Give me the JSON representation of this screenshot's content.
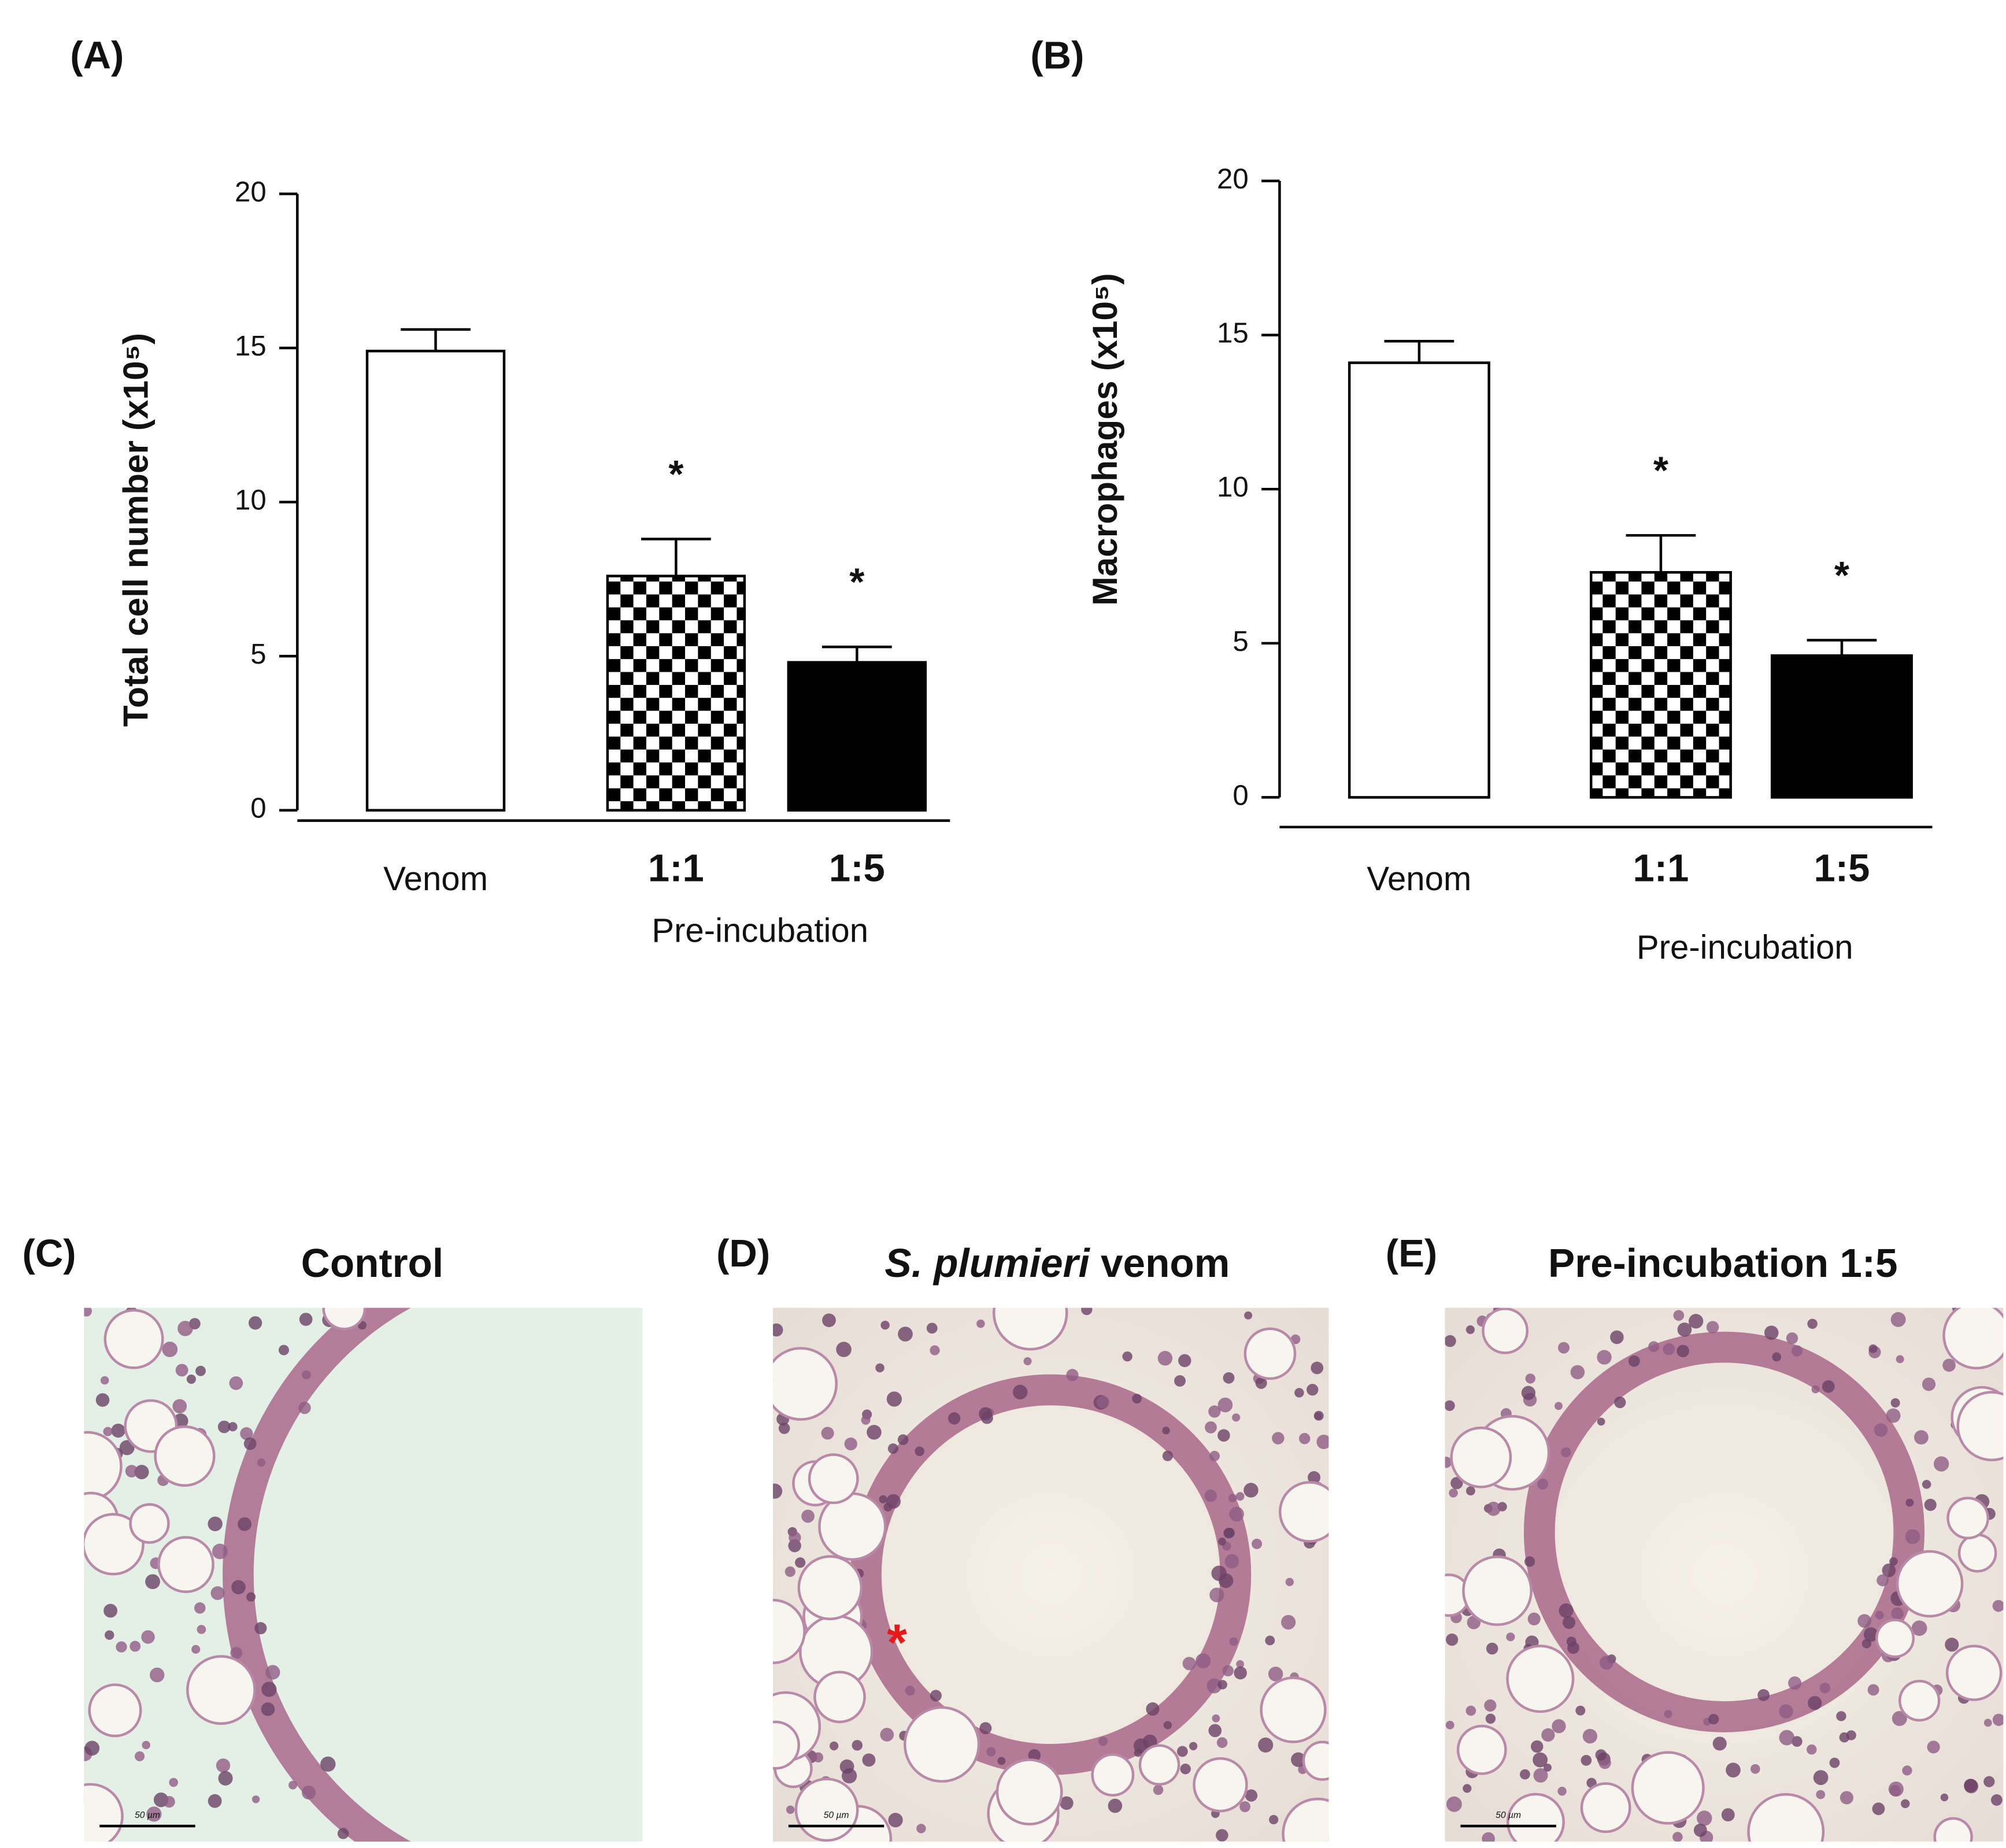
{
  "chart_data": [
    {
      "type": "bar",
      "panel": "(A)",
      "ylabel": "Total cell number (x10⁵)",
      "xlabel": "Pre-incubation",
      "categories": [
        "Venom",
        "1:1",
        "1:5"
      ],
      "values": [
        14.9,
        7.6,
        4.8
      ],
      "errors": [
        0.7,
        1.2,
        0.5
      ],
      "significance": [
        null,
        "*",
        "*"
      ],
      "fills": [
        "white",
        "checkerboard",
        "black"
      ],
      "ylim": [
        0,
        20
      ],
      "yticks": [
        0,
        5,
        10,
        15,
        20
      ],
      "grid": false
    },
    {
      "type": "bar",
      "panel": "(B)",
      "ylabel": "Macrophages (x10⁵)",
      "xlabel": "Pre-incubation",
      "categories": [
        "Venom",
        "1:1",
        "1:5"
      ],
      "values": [
        14.1,
        7.3,
        4.6
      ],
      "errors": [
        0.7,
        1.2,
        0.5
      ],
      "significance": [
        null,
        "*",
        "*"
      ],
      "fills": [
        "white",
        "checkerboard",
        "black"
      ],
      "ylim": [
        0,
        20
      ],
      "yticks": [
        0,
        5,
        10,
        15,
        20
      ],
      "grid": false
    }
  ],
  "images": [
    {
      "panel": "(C)",
      "title": "Control",
      "scale_bar": "50 µm"
    },
    {
      "panel": "(D)",
      "title_italic": "S. plumieri",
      "title": "venom",
      "marker": "*",
      "scale_bar": "50 µm"
    },
    {
      "panel": "(E)",
      "title": "Pre-incubation 1:5",
      "scale_bar": "50 µm"
    }
  ]
}
